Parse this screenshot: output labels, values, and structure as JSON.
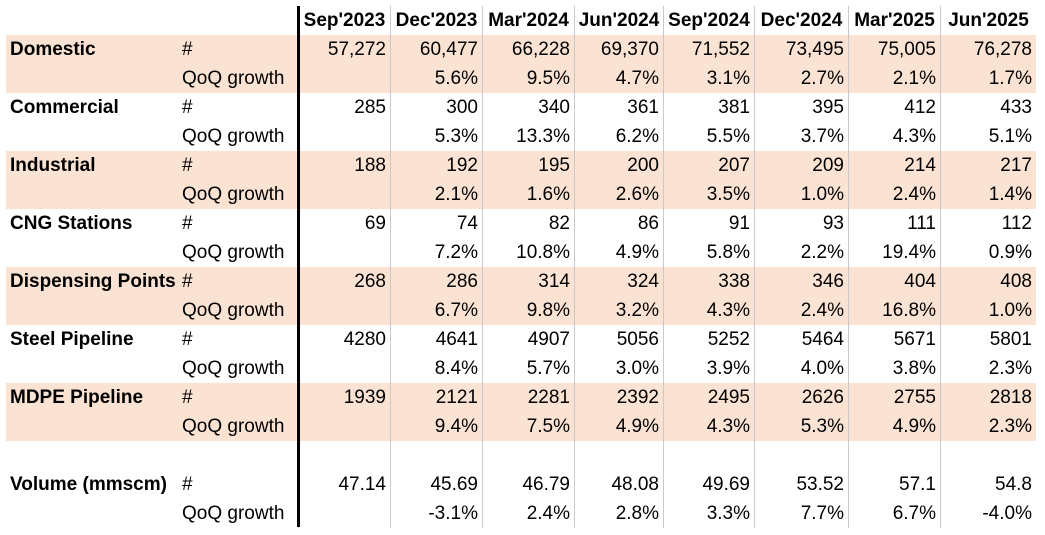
{
  "columns": [
    "Sep'2023",
    "Dec'2023",
    "Mar'2024",
    "Jun'2024",
    "Sep'2024",
    "Dec'2024",
    "Mar'2025",
    "Jun'2025"
  ],
  "count_unit": "#",
  "growth_unit": "QoQ growth",
  "metrics": [
    {
      "label": "Domestic",
      "counts": [
        "57,272",
        "60,477",
        "66,228",
        "69,370",
        "71,552",
        "73,495",
        "75,005",
        "76,278"
      ],
      "growth": [
        "",
        "5.6%",
        "9.5%",
        "4.7%",
        "3.1%",
        "2.7%",
        "2.1%",
        "1.7%"
      ]
    },
    {
      "label": "Commercial",
      "counts": [
        "285",
        "300",
        "340",
        "361",
        "381",
        "395",
        "412",
        "433"
      ],
      "growth": [
        "",
        "5.3%",
        "13.3%",
        "6.2%",
        "5.5%",
        "3.7%",
        "4.3%",
        "5.1%"
      ]
    },
    {
      "label": "Industrial",
      "counts": [
        "188",
        "192",
        "195",
        "200",
        "207",
        "209",
        "214",
        "217"
      ],
      "growth": [
        "",
        "2.1%",
        "1.6%",
        "2.6%",
        "3.5%",
        "1.0%",
        "2.4%",
        "1.4%"
      ]
    },
    {
      "label": "CNG Stations",
      "counts": [
        "69",
        "74",
        "82",
        "86",
        "91",
        "93",
        "111",
        "112"
      ],
      "growth": [
        "",
        "7.2%",
        "10.8%",
        "4.9%",
        "5.8%",
        "2.2%",
        "19.4%",
        "0.9%"
      ]
    },
    {
      "label": "Dispensing Points",
      "counts": [
        "268",
        "286",
        "314",
        "324",
        "338",
        "346",
        "404",
        "408"
      ],
      "growth": [
        "",
        "6.7%",
        "9.8%",
        "3.2%",
        "4.3%",
        "2.4%",
        "16.8%",
        "1.0%"
      ]
    },
    {
      "label": "Steel Pipeline",
      "counts": [
        "4280",
        "4641",
        "4907",
        "5056",
        "5252",
        "5464",
        "5671",
        "5801"
      ],
      "growth": [
        "",
        "8.4%",
        "5.7%",
        "3.0%",
        "3.9%",
        "4.0%",
        "3.8%",
        "2.3%"
      ]
    },
    {
      "label": "MDPE Pipeline",
      "counts": [
        "1939",
        "2121",
        "2281",
        "2392",
        "2495",
        "2626",
        "2755",
        "2818"
      ],
      "growth": [
        "",
        "9.4%",
        "7.5%",
        "4.9%",
        "4.3%",
        "5.3%",
        "4.9%",
        "2.3%"
      ]
    }
  ],
  "volume": {
    "label": "Volume (mmscm)",
    "counts": [
      "47.14",
      "45.69",
      "46.79",
      "48.08",
      "49.69",
      "53.52",
      "57.1",
      "54.8"
    ],
    "growth": [
      "",
      "-3.1%",
      "2.4%",
      "2.8%",
      "3.3%",
      "7.7%",
      "6.7%",
      "-4.0%"
    ]
  },
  "colors": {
    "shade": "#fbe3d4",
    "grid": "#c9c9c9",
    "divider": "#000000"
  }
}
